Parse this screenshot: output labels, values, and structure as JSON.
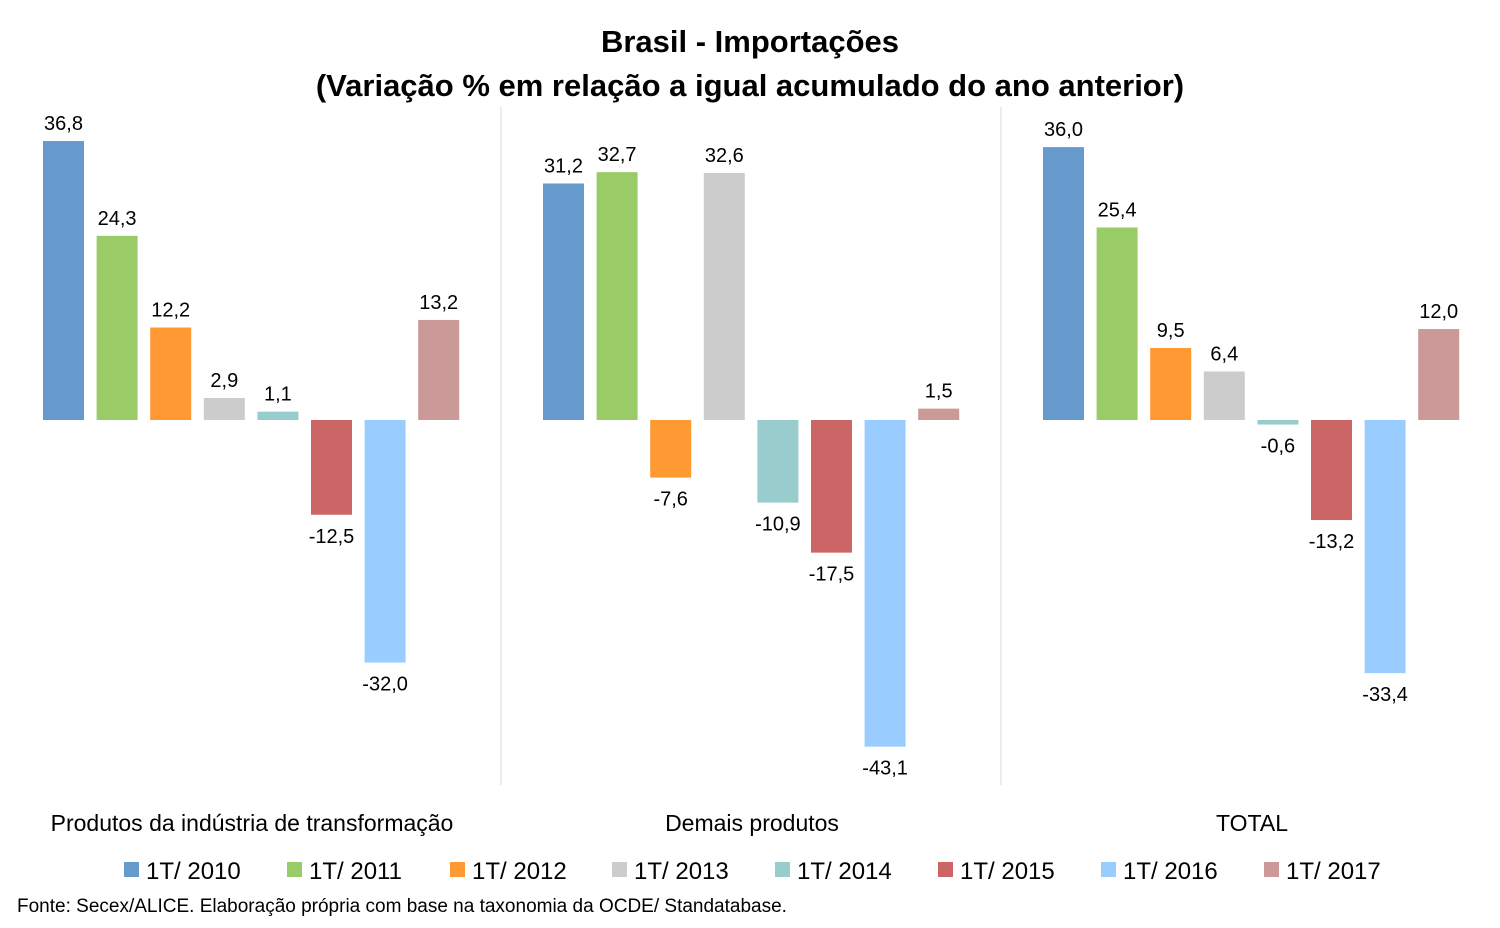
{
  "chart_data": {
    "type": "bar",
    "title": "Brasil - Importações",
    "subtitle": "(Variação % em relação a igual acumulado do ano anterior)",
    "categories": [
      "Produtos da indústria de transformação",
      "Demais produtos",
      "TOTAL"
    ],
    "series": [
      {
        "name": "1T/ 2010",
        "color": "#6699CC",
        "values": [
          36.8,
          31.2,
          36.0
        ],
        "labels": [
          "36,8",
          "31,2",
          "36,0"
        ]
      },
      {
        "name": "1T/ 2011",
        "color": "#99CC66",
        "values": [
          24.3,
          32.7,
          25.4
        ],
        "labels": [
          "24,3",
          "32,7",
          "25,4"
        ]
      },
      {
        "name": "1T/ 2012",
        "color": "#FF9933",
        "values": [
          12.2,
          -7.6,
          9.5
        ],
        "labels": [
          "12,2",
          "-7,6",
          "9,5"
        ]
      },
      {
        "name": "1T/ 2013",
        "color": "#CCCCCC",
        "values": [
          2.9,
          32.6,
          6.4
        ],
        "labels": [
          "2,9",
          "32,6",
          "6,4"
        ]
      },
      {
        "name": "1T/ 2014",
        "color": "#99CCCC",
        "values": [
          1.1,
          -10.9,
          -0.6
        ],
        "labels": [
          "1,1",
          "-10,9",
          "-0,6"
        ]
      },
      {
        "name": "1T/ 2015",
        "color": "#CC6666",
        "values": [
          -12.5,
          -17.5,
          -13.2
        ],
        "labels": [
          "-12,5",
          "-17,5",
          "-13,2"
        ]
      },
      {
        "name": "1T/ 2016",
        "color": "#99CCFF",
        "values": [
          -32.0,
          -43.1,
          -33.4
        ],
        "labels": [
          "-32,0",
          "-43,1",
          "-33,4"
        ]
      },
      {
        "name": "1T/ 2017",
        "color": "#CC9999",
        "values": [
          13.2,
          1.5,
          12.0
        ],
        "labels": [
          "13,2",
          "1,5",
          "12,0"
        ]
      }
    ],
    "legend_position": "bottom",
    "grid": false,
    "ylim": [
      -48,
      40
    ]
  },
  "source": "Fonte: Secex/ALICE. Elaboração própria com base na taxonomia da OCDE/ Standatabase."
}
